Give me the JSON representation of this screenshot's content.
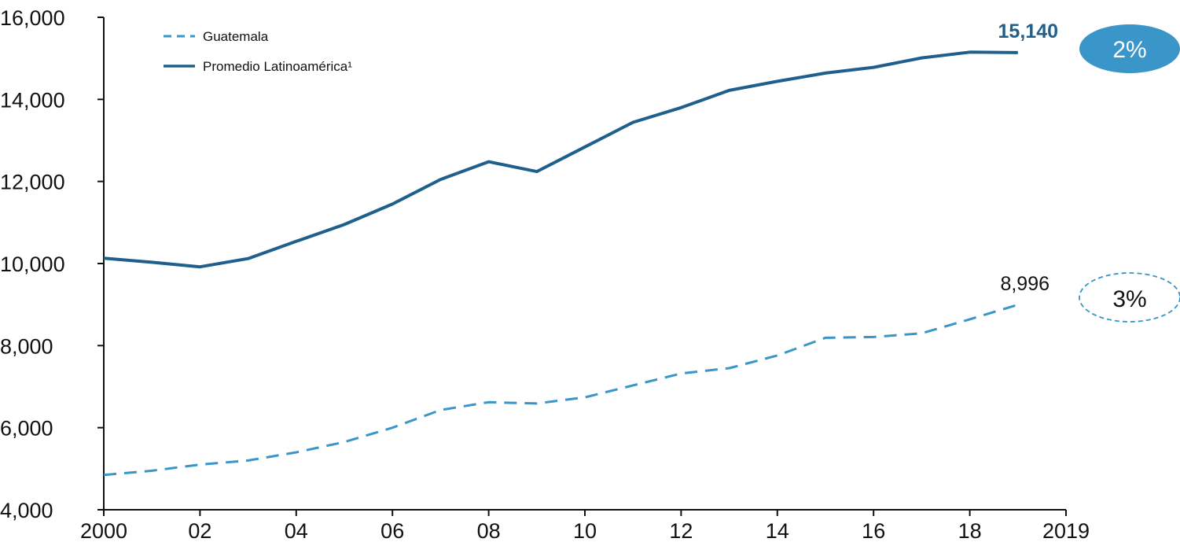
{
  "chart_data": {
    "type": "line",
    "title": "",
    "xlabel": "",
    "ylabel": "",
    "x_tick_labels": [
      "2000",
      "02",
      "04",
      "06",
      "08",
      "10",
      "12",
      "14",
      "16",
      "18",
      "2019"
    ],
    "y_tick_labels": [
      "4,000",
      "6,000",
      "8,000",
      "10,000",
      "12,000",
      "14,000",
      "16,000"
    ],
    "ylim": [
      4000,
      16000
    ],
    "xlim": [
      2000,
      2020
    ],
    "grid": false,
    "legend_position": "top-left",
    "x": [
      2000,
      2001,
      2002,
      2003,
      2004,
      2005,
      2006,
      2007,
      2008,
      2009,
      2010,
      2011,
      2012,
      2013,
      2014,
      2015,
      2016,
      2017,
      2018,
      2019
    ],
    "series": [
      {
        "name": "Guatemala",
        "legend_label": "Guatemala",
        "style": "dashed",
        "color": "#3a95c8",
        "values": [
          4850,
          4950,
          5100,
          5200,
          5400,
          5650,
          6000,
          6430,
          6620,
          6590,
          6740,
          7030,
          7320,
          7450,
          7760,
          8190,
          8210,
          8300,
          8640,
          8996
        ],
        "end_label": "8,996",
        "growth_badge": "3%"
      },
      {
        "name": "Promedio Latinoamérica",
        "legend_label": "Promedio Latinoamérica¹",
        "style": "solid",
        "color": "#1e5f8c",
        "values": [
          10130,
          10030,
          9920,
          10120,
          10540,
          10950,
          11450,
          12050,
          12480,
          12240,
          12840,
          13440,
          13800,
          14220,
          14440,
          14640,
          14780,
          15010,
          15150,
          15140
        ],
        "end_label": "15,140",
        "growth_badge": "2%"
      }
    ]
  },
  "colors": {
    "latam": "#1e5f8c",
    "guatemala": "#3a95c8",
    "badge_fill": "#3a95c8",
    "axis": "#111111"
  }
}
